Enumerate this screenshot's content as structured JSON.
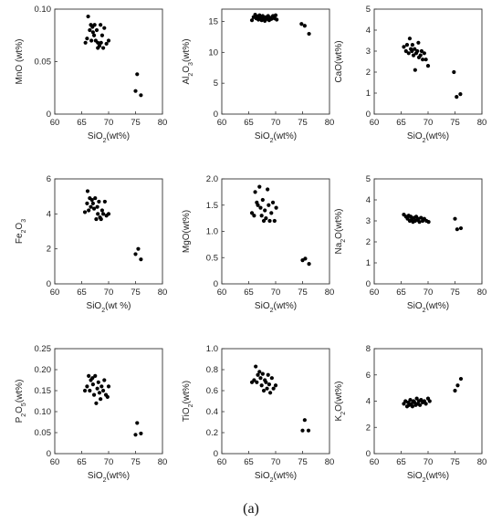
{
  "caption": "(a)",
  "chart_data": [
    {
      "type": "scatter",
      "xlabel": "SiO2(wt%)",
      "ylabel": "MnO (wt%)",
      "xlim": [
        60,
        80
      ],
      "ylim": [
        0,
        0.1
      ],
      "xticks": [
        "60",
        "65",
        "70",
        "75",
        "80"
      ],
      "yticks": [
        "0",
        "0.05",
        "0.10"
      ],
      "points": [
        [
          65.7,
          0.068
        ],
        [
          66.0,
          0.072
        ],
        [
          66.2,
          0.093
        ],
        [
          66.5,
          0.08
        ],
        [
          66.7,
          0.085
        ],
        [
          66.8,
          0.07
        ],
        [
          67.0,
          0.083
        ],
        [
          67.1,
          0.078
        ],
        [
          67.3,
          0.075
        ],
        [
          67.4,
          0.085
        ],
        [
          67.6,
          0.07
        ],
        [
          67.8,
          0.08
        ],
        [
          68.0,
          0.068
        ],
        [
          68.0,
          0.063
        ],
        [
          68.3,
          0.065
        ],
        [
          68.5,
          0.085
        ],
        [
          68.6,
          0.068
        ],
        [
          68.8,
          0.075
        ],
        [
          69.0,
          0.063
        ],
        [
          69.2,
          0.082
        ],
        [
          69.6,
          0.067
        ],
        [
          70.0,
          0.07
        ],
        [
          75.0,
          0.022
        ],
        [
          75.3,
          0.038
        ],
        [
          76.0,
          0.018
        ]
      ]
    },
    {
      "type": "scatter",
      "xlabel": "SiO2(wt%)",
      "ylabel": "Al2O3(wt%)",
      "xlim": [
        60,
        80
      ],
      "ylim": [
        0,
        17
      ],
      "xticks": [
        "60",
        "65",
        "70",
        "75",
        "80"
      ],
      "yticks": [
        "0",
        "5",
        "10",
        "15"
      ],
      "points": [
        [
          65.6,
          15.2
        ],
        [
          65.9,
          15.7
        ],
        [
          66.2,
          16.1
        ],
        [
          66.4,
          15.5
        ],
        [
          66.6,
          15.8
        ],
        [
          66.8,
          15.3
        ],
        [
          67.0,
          16.0
        ],
        [
          67.2,
          15.6
        ],
        [
          67.4,
          15.2
        ],
        [
          67.6,
          15.9
        ],
        [
          67.8,
          15.5
        ],
        [
          68.0,
          15.1
        ],
        [
          68.2,
          15.7
        ],
        [
          68.4,
          15.4
        ],
        [
          68.6,
          15.9
        ],
        [
          68.8,
          15.2
        ],
        [
          69.0,
          15.6
        ],
        [
          69.2,
          15.4
        ],
        [
          69.5,
          15.9
        ],
        [
          69.8,
          15.5
        ],
        [
          70.0,
          16.0
        ],
        [
          70.2,
          15.3
        ],
        [
          74.8,
          14.6
        ],
        [
          75.4,
          14.3
        ],
        [
          76.2,
          13.0
        ]
      ]
    },
    {
      "type": "scatter",
      "xlabel": "SiO2(wt%)",
      "ylabel": "CaO(wt%)",
      "xlim": [
        60,
        80
      ],
      "ylim": [
        0,
        5
      ],
      "xticks": [
        "60",
        "65",
        "70",
        "75",
        "80"
      ],
      "yticks": [
        "0",
        "1",
        "2",
        "3",
        "4",
        "5"
      ],
      "points": [
        [
          65.5,
          3.2
        ],
        [
          65.9,
          3.0
        ],
        [
          66.1,
          3.3
        ],
        [
          66.4,
          2.9
        ],
        [
          66.6,
          3.6
        ],
        [
          66.8,
          3.1
        ],
        [
          67.0,
          3.0
        ],
        [
          67.1,
          3.3
        ],
        [
          67.3,
          2.8
        ],
        [
          67.5,
          3.1
        ],
        [
          67.6,
          2.1
        ],
        [
          67.8,
          2.9
        ],
        [
          68.0,
          3.0
        ],
        [
          68.2,
          3.4
        ],
        [
          68.3,
          2.7
        ],
        [
          68.6,
          2.8
        ],
        [
          68.8,
          3.0
        ],
        [
          69.0,
          2.6
        ],
        [
          69.3,
          2.9
        ],
        [
          69.6,
          2.6
        ],
        [
          70.0,
          2.3
        ],
        [
          74.8,
          2.0
        ],
        [
          75.3,
          0.82
        ],
        [
          76.0,
          0.95
        ]
      ]
    },
    {
      "type": "scatter",
      "xlabel": "SiO2(wt %)",
      "ylabel": "Fe2O3",
      "xlim": [
        60,
        80
      ],
      "ylim": [
        0,
        6
      ],
      "xticks": [
        "60",
        "65",
        "70",
        "75",
        "80"
      ],
      "yticks": [
        "0",
        "2",
        "4",
        "6"
      ],
      "points": [
        [
          65.6,
          4.1
        ],
        [
          66.0,
          4.6
        ],
        [
          66.1,
          5.3
        ],
        [
          66.3,
          4.2
        ],
        [
          66.5,
          4.9
        ],
        [
          66.7,
          4.4
        ],
        [
          66.9,
          4.8
        ],
        [
          67.1,
          4.6
        ],
        [
          67.3,
          4.3
        ],
        [
          67.5,
          4.9
        ],
        [
          67.7,
          3.7
        ],
        [
          67.9,
          4.4
        ],
        [
          68.0,
          4.0
        ],
        [
          68.2,
          4.7
        ],
        [
          68.4,
          3.8
        ],
        [
          68.6,
          3.7
        ],
        [
          68.8,
          4.2
        ],
        [
          69.0,
          4.0
        ],
        [
          69.3,
          4.7
        ],
        [
          69.6,
          3.9
        ],
        [
          70.0,
          4.0
        ],
        [
          75.0,
          1.7
        ],
        [
          75.5,
          2.0
        ],
        [
          76.0,
          1.4
        ]
      ]
    },
    {
      "type": "scatter",
      "xlabel": "SiO2(wt%)",
      "ylabel": "MgO(wt%)",
      "xlim": [
        60,
        80
      ],
      "ylim": [
        0,
        2
      ],
      "xticks": [
        "60",
        "65",
        "70",
        "75",
        "80"
      ],
      "yticks": [
        "0",
        "0.5",
        "1.0",
        "1.5",
        "2.0"
      ],
      "points": [
        [
          65.6,
          1.35
        ],
        [
          66.0,
          1.3
        ],
        [
          66.2,
          1.75
        ],
        [
          66.5,
          1.55
        ],
        [
          66.7,
          1.5
        ],
        [
          67.0,
          1.85
        ],
        [
          67.2,
          1.45
        ],
        [
          67.4,
          1.3
        ],
        [
          67.6,
          1.6
        ],
        [
          67.8,
          1.2
        ],
        [
          68.0,
          1.4
        ],
        [
          68.2,
          1.25
        ],
        [
          68.5,
          1.8
        ],
        [
          68.7,
          1.5
        ],
        [
          68.9,
          1.2
        ],
        [
          69.2,
          1.35
        ],
        [
          69.5,
          1.55
        ],
        [
          69.8,
          1.2
        ],
        [
          70.1,
          1.45
        ],
        [
          75.0,
          0.45
        ],
        [
          75.5,
          0.48
        ],
        [
          76.2,
          0.38
        ]
      ]
    },
    {
      "type": "scatter",
      "xlabel": "SiO2(wt%)",
      "ylabel": "Na2O(wt%)",
      "xlim": [
        60,
        80
      ],
      "ylim": [
        0,
        5
      ],
      "xticks": [
        "60",
        "65",
        "70",
        "75",
        "80"
      ],
      "yticks": [
        "0",
        "1",
        "2",
        "3",
        "4",
        "5"
      ],
      "points": [
        [
          65.5,
          3.3
        ],
        [
          65.9,
          3.2
        ],
        [
          66.2,
          3.1
        ],
        [
          66.4,
          3.25
        ],
        [
          66.6,
          3.0
        ],
        [
          66.8,
          3.2
        ],
        [
          67.0,
          3.1
        ],
        [
          67.2,
          2.95
        ],
        [
          67.4,
          3.15
        ],
        [
          67.6,
          3.0
        ],
        [
          67.8,
          3.2
        ],
        [
          68.0,
          3.05
        ],
        [
          68.2,
          3.1
        ],
        [
          68.4,
          2.95
        ],
        [
          68.7,
          3.15
        ],
        [
          69.0,
          3.0
        ],
        [
          69.3,
          3.1
        ],
        [
          69.7,
          3.0
        ],
        [
          70.1,
          2.95
        ],
        [
          75.0,
          3.1
        ],
        [
          75.4,
          2.6
        ],
        [
          76.1,
          2.65
        ]
      ]
    },
    {
      "type": "scatter",
      "xlabel": "SiO2(wt%)",
      "ylabel": "P2O5(wt%)",
      "xlim": [
        60,
        80
      ],
      "ylim": [
        0,
        0.25
      ],
      "xticks": [
        "60",
        "65",
        "70",
        "75",
        "80"
      ],
      "yticks": [
        "0",
        "0.05",
        "0.10",
        "0.15",
        "0.20",
        "0.25"
      ],
      "points": [
        [
          65.6,
          0.15
        ],
        [
          66.0,
          0.16
        ],
        [
          66.3,
          0.185
        ],
        [
          66.5,
          0.15
        ],
        [
          66.7,
          0.175
        ],
        [
          67.0,
          0.18
        ],
        [
          67.1,
          0.165
        ],
        [
          67.3,
          0.14
        ],
        [
          67.5,
          0.185
        ],
        [
          67.7,
          0.12
        ],
        [
          67.9,
          0.155
        ],
        [
          68.1,
          0.17
        ],
        [
          68.3,
          0.145
        ],
        [
          68.5,
          0.13
        ],
        [
          68.7,
          0.16
        ],
        [
          69.0,
          0.15
        ],
        [
          69.2,
          0.175
        ],
        [
          69.5,
          0.14
        ],
        [
          69.8,
          0.135
        ],
        [
          70.0,
          0.16
        ],
        [
          75.0,
          0.045
        ],
        [
          75.3,
          0.073
        ],
        [
          76.0,
          0.048
        ]
      ]
    },
    {
      "type": "scatter",
      "xlabel": "SiO2(wt%)",
      "ylabel": "TiO2(wt%)",
      "xlim": [
        60,
        80
      ],
      "ylim": [
        0,
        1
      ],
      "xticks": [
        "60",
        "65",
        "70",
        "75",
        "80"
      ],
      "yticks": [
        "0",
        "0.2",
        "0.4",
        "0.6",
        "0.8",
        "1.0"
      ],
      "points": [
        [
          65.6,
          0.68
        ],
        [
          66.0,
          0.7
        ],
        [
          66.3,
          0.83
        ],
        [
          66.5,
          0.68
        ],
        [
          66.7,
          0.75
        ],
        [
          67.0,
          0.78
        ],
        [
          67.2,
          0.72
        ],
        [
          67.4,
          0.65
        ],
        [
          67.6,
          0.76
        ],
        [
          67.8,
          0.6
        ],
        [
          68.0,
          0.7
        ],
        [
          68.2,
          0.68
        ],
        [
          68.4,
          0.62
        ],
        [
          68.6,
          0.75
        ],
        [
          68.8,
          0.66
        ],
        [
          69.0,
          0.58
        ],
        [
          69.3,
          0.72
        ],
        [
          69.6,
          0.62
        ],
        [
          70.0,
          0.65
        ],
        [
          75.0,
          0.22
        ],
        [
          75.4,
          0.32
        ],
        [
          76.1,
          0.22
        ]
      ]
    },
    {
      "type": "scatter",
      "xlabel": "SiO2(wt%)",
      "ylabel": "K2O(wt%)",
      "xlim": [
        60,
        80
      ],
      "ylim": [
        0,
        8
      ],
      "xticks": [
        "60",
        "65",
        "70",
        "75",
        "80"
      ],
      "yticks": [
        "0",
        "2",
        "4",
        "6",
        "8"
      ],
      "points": [
        [
          65.5,
          3.8
        ],
        [
          65.8,
          4.0
        ],
        [
          66.1,
          3.6
        ],
        [
          66.3,
          3.9
        ],
        [
          66.5,
          3.7
        ],
        [
          66.7,
          4.1
        ],
        [
          66.9,
          3.8
        ],
        [
          67.1,
          3.6
        ],
        [
          67.3,
          4.0
        ],
        [
          67.5,
          3.9
        ],
        [
          67.7,
          3.7
        ],
        [
          67.9,
          4.2
        ],
        [
          68.1,
          3.8
        ],
        [
          68.3,
          4.0
        ],
        [
          68.5,
          3.7
        ],
        [
          68.7,
          4.1
        ],
        [
          69.0,
          3.9
        ],
        [
          69.3,
          4.0
        ],
        [
          69.6,
          3.8
        ],
        [
          70.0,
          4.2
        ],
        [
          70.3,
          4.0
        ],
        [
          75.0,
          4.8
        ],
        [
          75.5,
          5.2
        ],
        [
          76.1,
          5.7
        ]
      ]
    }
  ]
}
